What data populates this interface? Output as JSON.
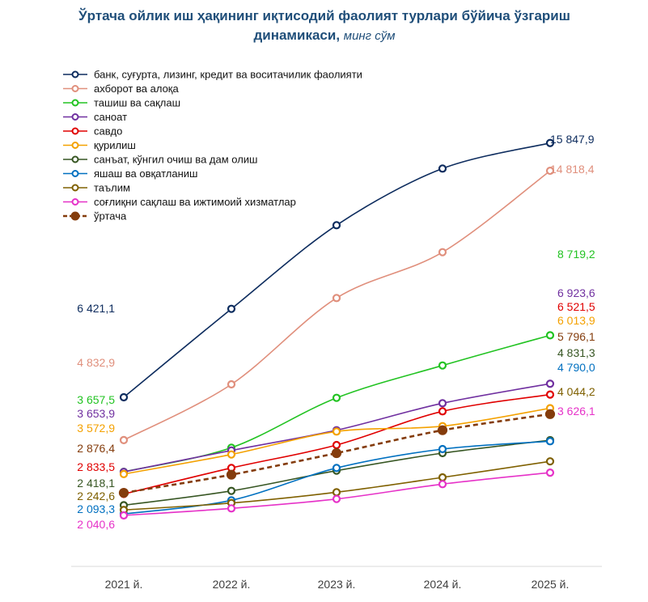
{
  "chart_data": {
    "type": "line",
    "title": "Ўртача ойлик иш ҳақининг иқтисодий фаолият турлари бўйича ўзгариш динамикаси,",
    "title_unit": "минг сўм",
    "categories": [
      "2021 й.",
      "2022 й.",
      "2023 й.",
      "2024 й.",
      "2025 й."
    ],
    "ylim": [
      1500,
      16500
    ],
    "grid": false,
    "legend_position": "top-left",
    "series": [
      {
        "name": "банк, суғурта, лизинг, кредит ва воситачилик фаолияти",
        "color": "#0d2c5e",
        "dashed": false,
        "values": [
          6421.1,
          9700,
          12800,
          14900,
          15847.9
        ],
        "start_label": "6 421,1",
        "end_label": "15 847,9"
      },
      {
        "name": "ахборот ва алоқа",
        "color": "#e08f7c",
        "dashed": false,
        "values": [
          4832.9,
          6900,
          10100,
          11800,
          14818.4
        ],
        "start_label": "4 832,9",
        "end_label": "14 818,4"
      },
      {
        "name": "ташиш ва сақлаш",
        "color": "#22c322",
        "dashed": false,
        "values": [
          3657.5,
          4550,
          6400,
          7600,
          8719.2
        ],
        "start_label": "3 657,5",
        "end_label": "8 719,2"
      },
      {
        "name": "саноат",
        "color": "#7030a0",
        "dashed": false,
        "values": [
          3653.9,
          4450,
          5200,
          6200,
          6923.6
        ],
        "start_label": "3 653,9",
        "end_label": "6 923,6"
      },
      {
        "name": "савдо",
        "color": "#e00000",
        "dashed": false,
        "values": [
          2833.5,
          3800,
          4650,
          5900,
          6521.5
        ],
        "start_label": "2 833,5",
        "end_label": "6 521,5"
      },
      {
        "name": "қурилиш",
        "color": "#f4a100",
        "dashed": false,
        "values": [
          3572.9,
          4300,
          5150,
          5350,
          6013.9
        ],
        "start_label": "3 572,9",
        "end_label": "6 013,9"
      },
      {
        "name": "санъат, кўнгил очиш ва дам олиш",
        "color": "#375623",
        "dashed": false,
        "values": [
          2418.1,
          2950,
          3700,
          4350,
          4831.3
        ],
        "start_label": "2 418,1",
        "end_label": "4 831,3"
      },
      {
        "name": "яшаш ва овқатланиш",
        "color": "#0070c0",
        "dashed": false,
        "values": [
          2093.3,
          2600,
          3800,
          4500,
          4790.0
        ],
        "start_label": "2 093,3",
        "end_label": "4 790,0"
      },
      {
        "name": "таълим",
        "color": "#7f6000",
        "dashed": false,
        "values": [
          2242.6,
          2500,
          2900,
          3450,
          4044.2
        ],
        "start_label": "2 242,6",
        "end_label": "4 044,2"
      },
      {
        "name": "соғлиқни сақлаш ва ижтимоий хизматлар",
        "color": "#e632c8",
        "dashed": false,
        "values": [
          2040.6,
          2300,
          2650,
          3200,
          3626.1
        ],
        "start_label": "2 040,6",
        "end_label": "3 626,1"
      },
      {
        "name": "ўртача",
        "color": "#843c0c",
        "dashed": true,
        "values": [
          2876.4,
          3550,
          4350,
          5200,
          5796.1
        ],
        "start_label": "2 876,4",
        "end_label": "5 796,1"
      }
    ]
  }
}
